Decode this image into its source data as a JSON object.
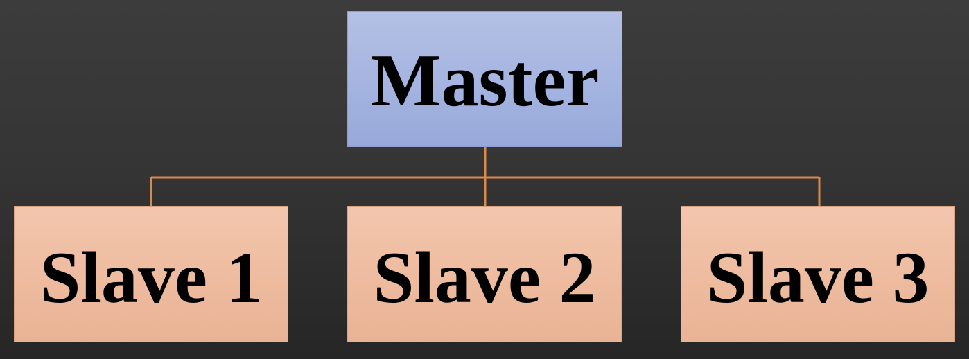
{
  "diagram": {
    "root": {
      "label": "Master"
    },
    "children": [
      {
        "label": "Slave 1"
      },
      {
        "label": "Slave 2"
      },
      {
        "label": "Slave 3"
      }
    ]
  },
  "colors": {
    "background": "#363636",
    "master_fill": "#a7b6e1",
    "slave_fill": "#eebb9f",
    "connector": "#d9894a",
    "text": "#000000"
  }
}
